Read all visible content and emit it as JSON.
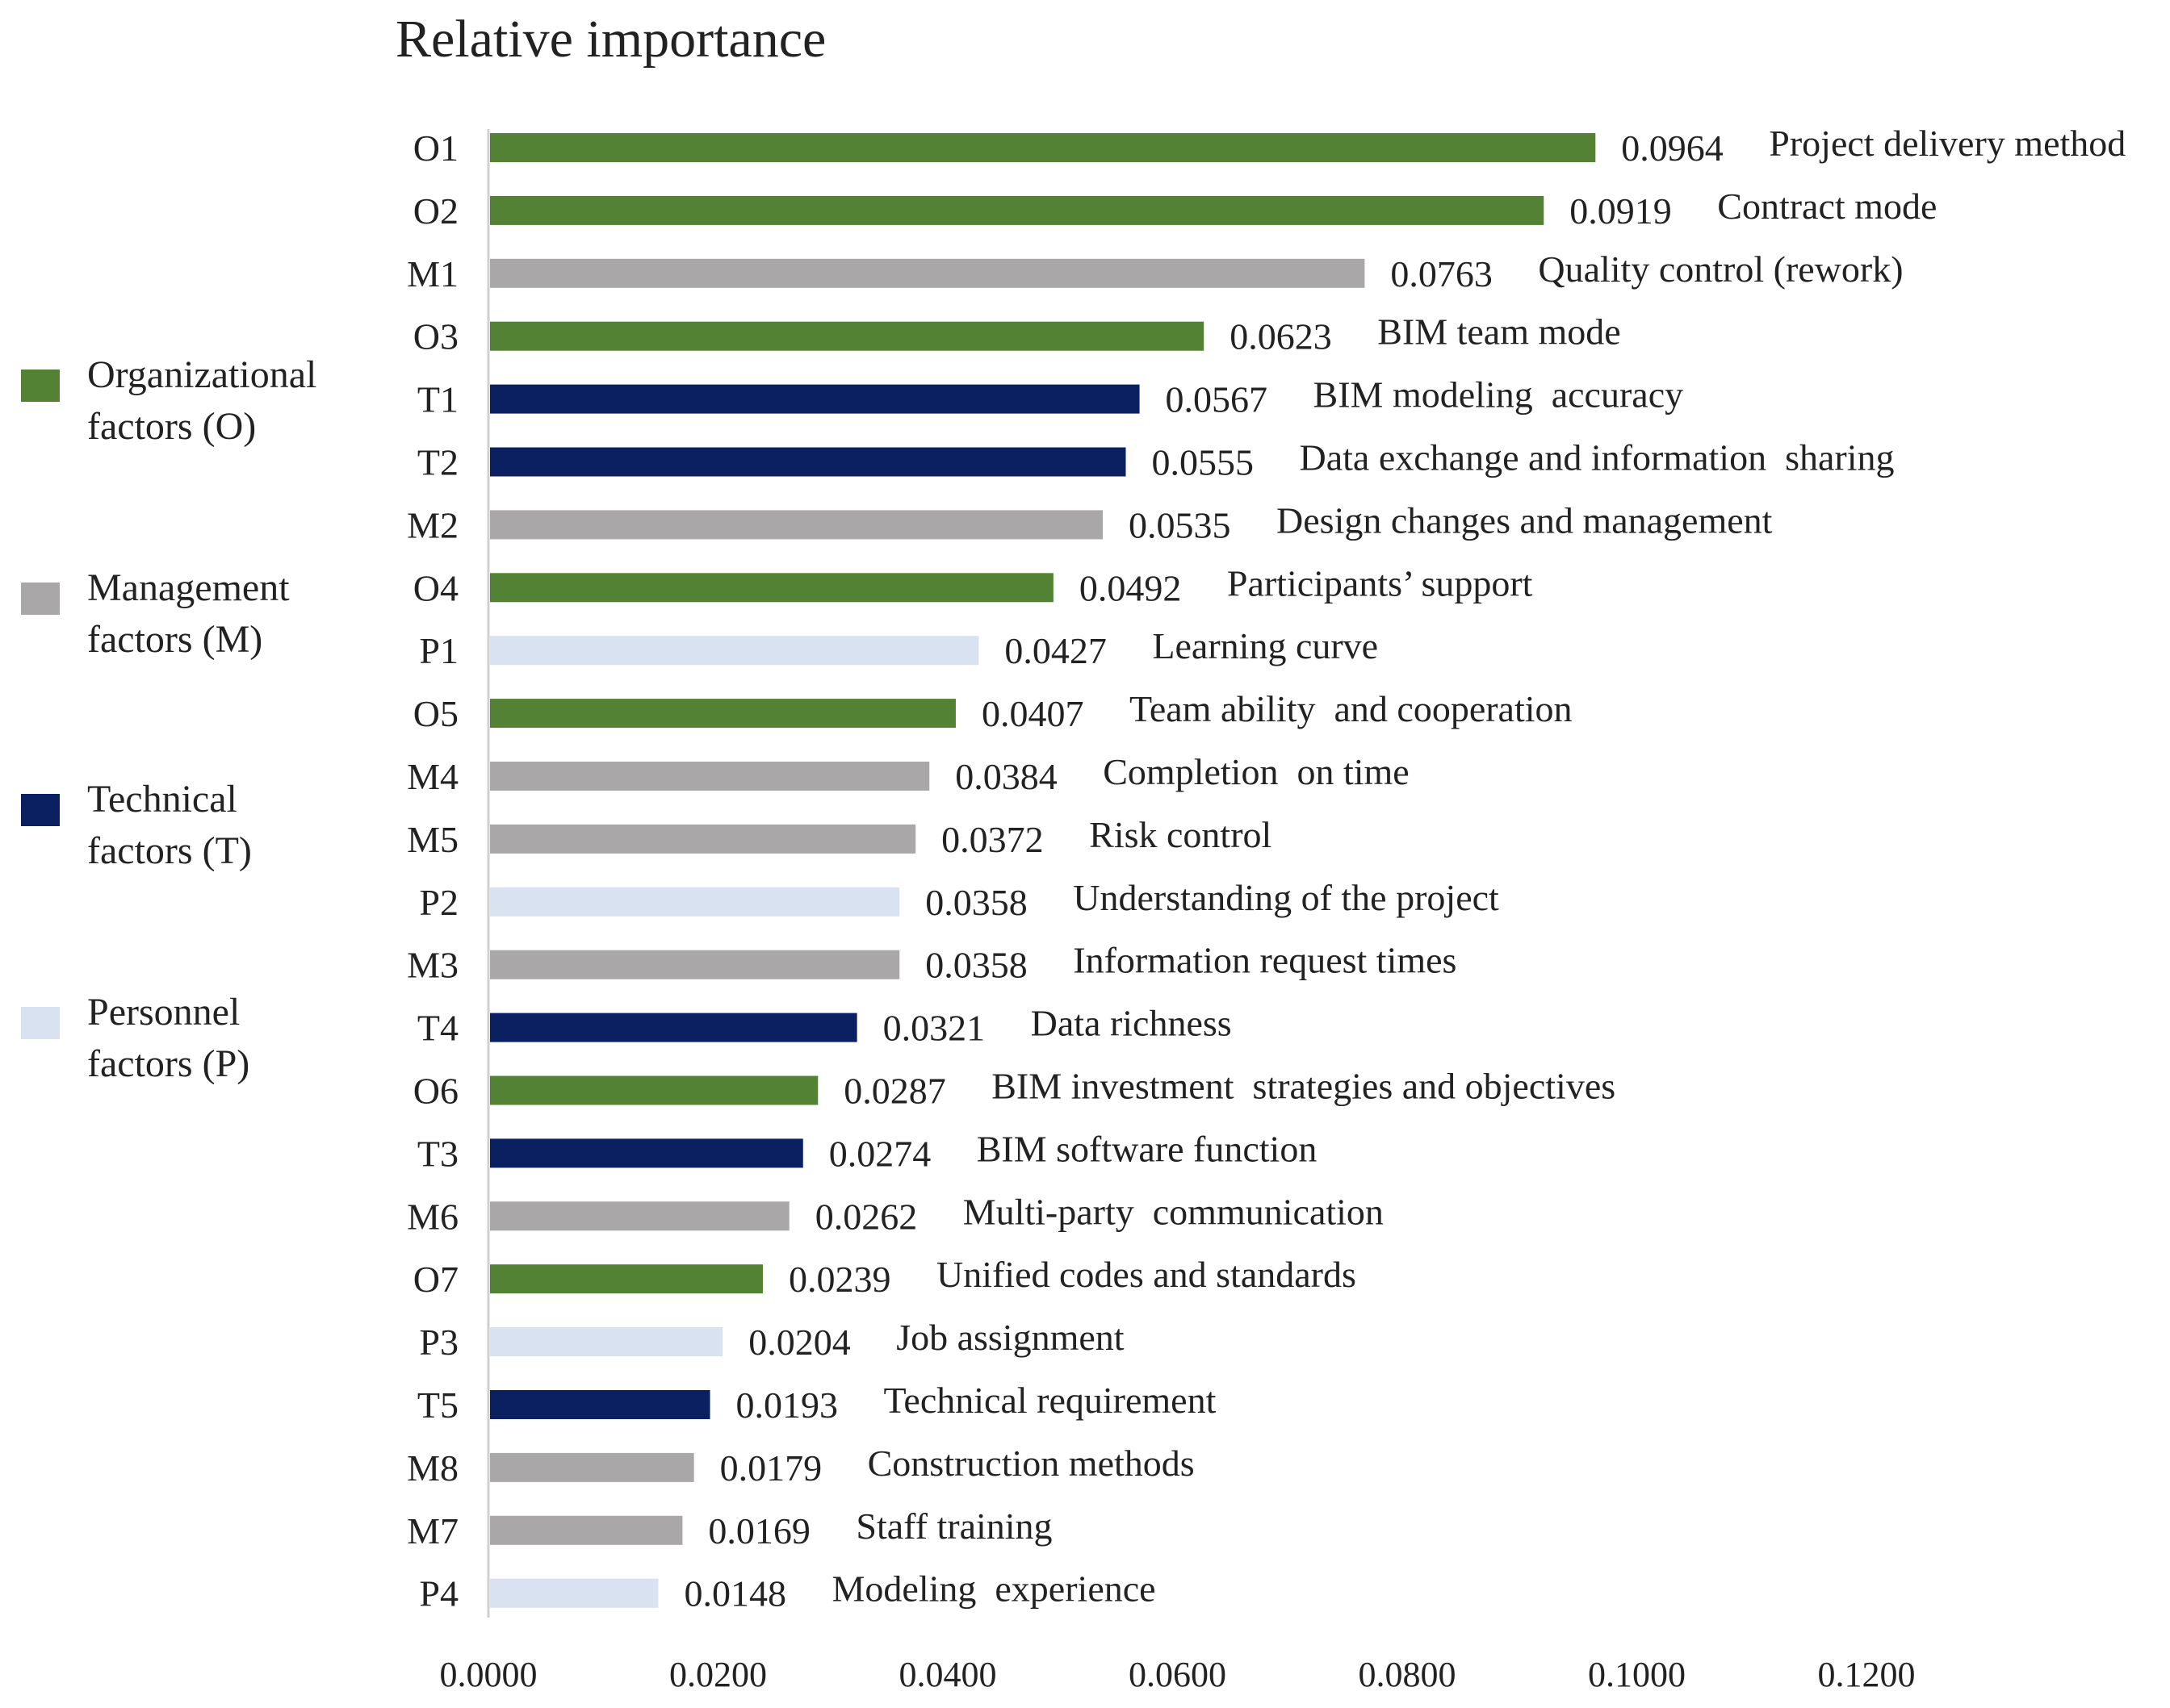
{
  "chart_data": {
    "type": "bar",
    "orientation": "horizontal",
    "title": "Relative importance",
    "xlabel": "",
    "ylabel": "",
    "xlim": [
      0,
      0.12
    ],
    "ticks": [
      "0.0000",
      "0.0200",
      "0.0400",
      "0.0600",
      "0.0800",
      "0.1000",
      "0.1200"
    ],
    "tick_values": [
      0,
      0.02,
      0.04,
      0.06,
      0.08,
      0.1,
      0.12
    ],
    "grid": false,
    "legend_position": "left",
    "groups": [
      {
        "key": "O",
        "label_line1": "Organizational",
        "label_line2": "factors (O)",
        "color": "#548235"
      },
      {
        "key": "M",
        "label_line1": "Management",
        "label_line2": "factors (M)",
        "color": "#a9a7a8"
      },
      {
        "key": "T",
        "label_line1": "Technical",
        "label_line2": "factors (T)",
        "color": "#0b2060"
      },
      {
        "key": "P",
        "label_line1": "Personnel",
        "label_line2": "factors (P)",
        "color": "#d9e2f1"
      }
    ],
    "bars": [
      {
        "code": "O1",
        "group": "O",
        "value": 0.0964,
        "value_text": "0.0964",
        "name": "Project delivery method"
      },
      {
        "code": "O2",
        "group": "O",
        "value": 0.0919,
        "value_text": "0.0919",
        "name": "Contract mode"
      },
      {
        "code": "M1",
        "group": "M",
        "value": 0.0763,
        "value_text": "0.0763",
        "name": "Quality control (rework)"
      },
      {
        "code": "O3",
        "group": "O",
        "value": 0.0623,
        "value_text": "0.0623",
        "name": "BIM team mode"
      },
      {
        "code": "T1",
        "group": "T",
        "value": 0.0567,
        "value_text": "0.0567",
        "name": "BIM modeling  accuracy"
      },
      {
        "code": "T2",
        "group": "T",
        "value": 0.0555,
        "value_text": "0.0555",
        "name": "Data exchange and information  sharing"
      },
      {
        "code": "M2",
        "group": "M",
        "value": 0.0535,
        "value_text": "0.0535",
        "name": "Design changes and management"
      },
      {
        "code": "O4",
        "group": "O",
        "value": 0.0492,
        "value_text": "0.0492",
        "name": "Participants’ support"
      },
      {
        "code": "P1",
        "group": "P",
        "value": 0.0427,
        "value_text": "0.0427",
        "name": "Learning curve"
      },
      {
        "code": "O5",
        "group": "O",
        "value": 0.0407,
        "value_text": "0.0407",
        "name": "Team ability  and cooperation"
      },
      {
        "code": "M4",
        "group": "M",
        "value": 0.0384,
        "value_text": "0.0384",
        "name": "Completion  on time"
      },
      {
        "code": "M5",
        "group": "M",
        "value": 0.0372,
        "value_text": "0.0372",
        "name": "Risk control"
      },
      {
        "code": "P2",
        "group": "P",
        "value": 0.0358,
        "value_text": "0.0358",
        "name": "Understanding of the project"
      },
      {
        "code": "M3",
        "group": "M",
        "value": 0.0358,
        "value_text": "0.0358",
        "name": "Information request times"
      },
      {
        "code": "T4",
        "group": "T",
        "value": 0.0321,
        "value_text": "0.0321",
        "name": "Data richness"
      },
      {
        "code": "O6",
        "group": "O",
        "value": 0.0287,
        "value_text": "0.0287",
        "name": "BIM investment  strategies and objectives"
      },
      {
        "code": "T3",
        "group": "T",
        "value": 0.0274,
        "value_text": "0.0274",
        "name": "BIM software function"
      },
      {
        "code": "M6",
        "group": "M",
        "value": 0.0262,
        "value_text": "0.0262",
        "name": "Multi-party  communication"
      },
      {
        "code": "O7",
        "group": "O",
        "value": 0.0239,
        "value_text": "0.0239",
        "name": "Unified codes and standards"
      },
      {
        "code": "P3",
        "group": "P",
        "value": 0.0204,
        "value_text": "0.0204",
        "name": "Job assignment"
      },
      {
        "code": "T5",
        "group": "T",
        "value": 0.0193,
        "value_text": "0.0193",
        "name": "Technical requirement"
      },
      {
        "code": "M8",
        "group": "M",
        "value": 0.0179,
        "value_text": "0.0179",
        "name": "Construction methods"
      },
      {
        "code": "M7",
        "group": "M",
        "value": 0.0169,
        "value_text": "0.0169",
        "name": "Staff training"
      },
      {
        "code": "P4",
        "group": "P",
        "value": 0.0148,
        "value_text": "0.0148",
        "name": "Modeling  experience"
      }
    ]
  }
}
